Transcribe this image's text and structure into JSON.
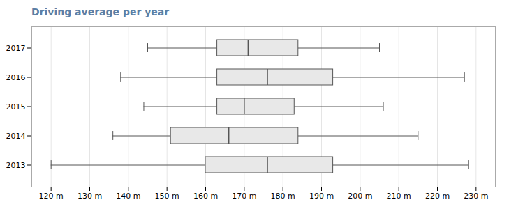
{
  "chart_data": {
    "type": "box",
    "orientation": "horizontal",
    "title": "Driving average per year",
    "categories": [
      "2017",
      "2016",
      "2015",
      "2014",
      "2013"
    ],
    "whislo": [
      145,
      138,
      144,
      136,
      120
    ],
    "q1": [
      163,
      163,
      163,
      151,
      160
    ],
    "med": [
      171,
      176,
      170,
      166,
      176
    ],
    "q3": [
      184,
      193,
      183,
      184,
      193
    ],
    "whishi": [
      205,
      227,
      206,
      215,
      228
    ],
    "color": "#e8e8e8",
    "xlim": [
      115,
      235
    ],
    "xticks": [
      {
        "value": 120,
        "label": "120 m"
      },
      {
        "value": 130,
        "label": "130 m"
      },
      {
        "value": 140,
        "label": "140 m"
      },
      {
        "value": 150,
        "label": "150 m"
      },
      {
        "value": 160,
        "label": "160 m"
      },
      {
        "value": 170,
        "label": "170 m"
      },
      {
        "value": 180,
        "label": "180 m"
      },
      {
        "value": 190,
        "label": "190 m"
      },
      {
        "value": 200,
        "label": "200 m"
      },
      {
        "value": 210,
        "label": "210 m"
      },
      {
        "value": 220,
        "label": "220 m"
      },
      {
        "value": 230,
        "label": "230 m"
      }
    ],
    "grid": true
  }
}
